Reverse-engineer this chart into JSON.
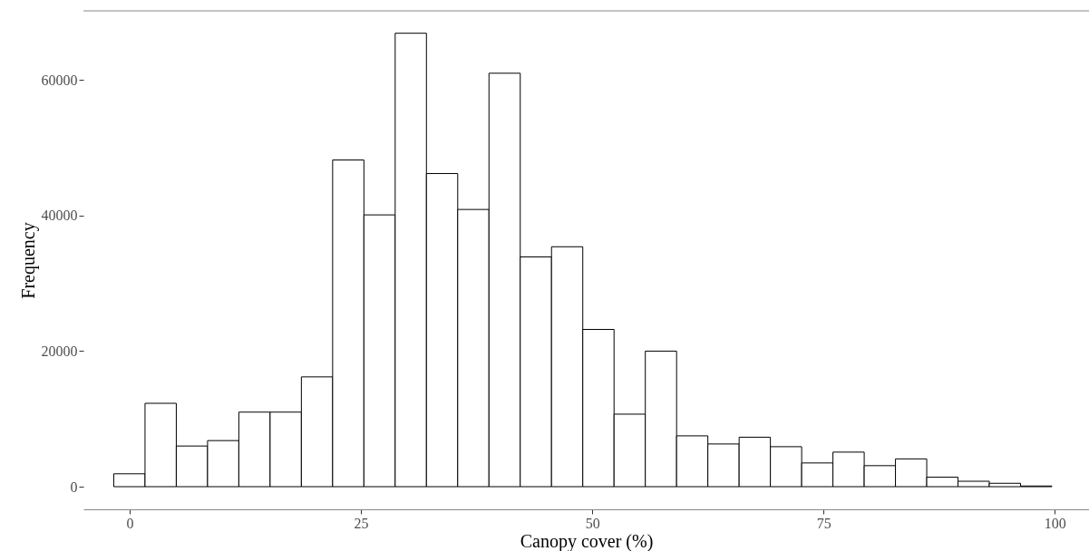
{
  "chart_data": {
    "type": "histogram",
    "xlabel": "Canopy cover (%)",
    "ylabel": "Frequency",
    "bins": [
      -1.72,
      1.66,
      5.04,
      8.42,
      11.8,
      15.18,
      18.56,
      21.94,
      25.32,
      28.7,
      32.08,
      35.46,
      38.84,
      42.22,
      45.6,
      48.98,
      52.36,
      55.74,
      59.12,
      62.5,
      65.88,
      69.26,
      72.64,
      76.02,
      79.4,
      82.78,
      86.16,
      89.54,
      92.92,
      96.3,
      99.68
    ],
    "values": [
      1900,
      12300,
      6000,
      6800,
      11000,
      11000,
      16200,
      48200,
      40100,
      66900,
      46200,
      40900,
      61000,
      33900,
      35400,
      23200,
      10700,
      20000,
      7500,
      6300,
      7300,
      5900,
      3500,
      5100,
      3100,
      4100,
      1400,
      800,
      500,
      100
    ],
    "xlim": [
      -5,
      103.7
    ],
    "ylim": [
      -3340,
      70200
    ],
    "xticks": [
      0,
      25,
      50,
      75,
      100
    ],
    "yticks": [
      0,
      20000,
      40000,
      60000
    ]
  }
}
